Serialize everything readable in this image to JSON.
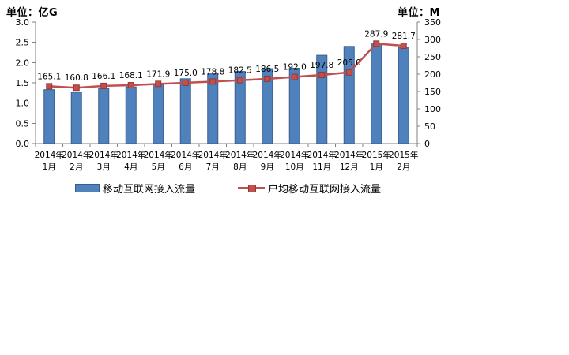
{
  "units": {
    "left": "单位：亿G",
    "right": "单位：M"
  },
  "legend": {
    "items": [
      {
        "label": "移动互联网接入流量",
        "swatch": "bar",
        "color": "#4F81BD"
      },
      {
        "label": "户均移动互联网接入流量",
        "swatch": "line-marker",
        "color": "#C0504D"
      }
    ]
  },
  "colors": {
    "bar_fill": "#4F81BD",
    "bar_border": "#385D8A",
    "line": "#C0504D",
    "marker_border": "#953735",
    "axis": "#808080",
    "tick_text": "#000000",
    "data_label_text": "#000000"
  },
  "chart_data": {
    "type": "bar",
    "subtype": "combo-bar-line",
    "categories": [
      {
        "year": "2014年",
        "month": "1月"
      },
      {
        "year": "2014年",
        "month": "2月"
      },
      {
        "year": "2014年",
        "month": "3月"
      },
      {
        "year": "2014年",
        "month": "4月"
      },
      {
        "year": "2014年",
        "month": "5月"
      },
      {
        "year": "2014年",
        "month": "6月"
      },
      {
        "year": "2014年",
        "month": "7月"
      },
      {
        "year": "2014年",
        "month": "8月"
      },
      {
        "year": "2014年",
        "month": "9月"
      },
      {
        "year": "2014年",
        "month": "10月"
      },
      {
        "year": "2014年",
        "month": "11月"
      },
      {
        "year": "2014年",
        "month": "12月"
      },
      {
        "year": "2015年",
        "month": "1月"
      },
      {
        "year": "2015年",
        "month": "2月"
      }
    ],
    "series": [
      {
        "name": "移动互联网接入流量",
        "chart": "bar",
        "axis": "left",
        "color": "#4F81BD",
        "values": [
          1.33,
          1.27,
          1.37,
          1.4,
          1.47,
          1.6,
          1.72,
          1.78,
          1.85,
          1.86,
          2.18,
          2.4,
          2.46,
          2.38
        ]
      },
      {
        "name": "户均移动互联网接入流量",
        "chart": "line",
        "axis": "right",
        "color": "#C0504D",
        "marker": "square",
        "data_labels": true,
        "values": [
          165.1,
          160.8,
          166.1,
          168.1,
          171.9,
          175.0,
          178.8,
          182.5,
          186.5,
          192.0,
          197.8,
          205.0,
          287.9,
          281.7
        ]
      }
    ],
    "left_axis": {
      "title": "单位：亿G",
      "min": 0.0,
      "max": 3.0,
      "step": 0.5,
      "tick_labels": [
        "3.0",
        "2.5",
        "2.0",
        "1.5",
        "1.0",
        "0.5",
        "0.0"
      ]
    },
    "right_axis": {
      "title": "单位：M",
      "min": 0,
      "max": 350,
      "step": 50,
      "tick_labels": [
        "350",
        "300",
        "250",
        "200",
        "150",
        "100",
        "50",
        "0"
      ]
    },
    "grid": false,
    "legend_position": "bottom"
  }
}
